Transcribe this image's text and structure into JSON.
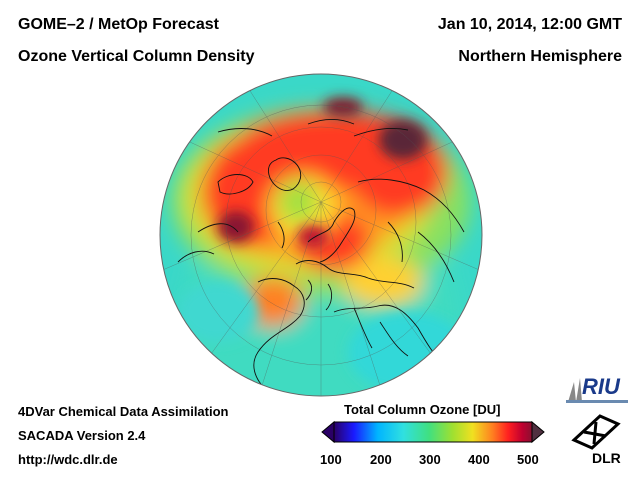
{
  "header": {
    "title": "GOME–2 / MetOp Forecast",
    "subtitle": "Ozone Vertical Column Density",
    "datetime": "Jan 10, 2014, 12:00 GMT",
    "region": "Northern Hemisphere"
  },
  "footer": {
    "method": "4DVar Chemical Data Assimilation",
    "version": "SACADA Version 2.4",
    "url": "http://wdc.dlr.de"
  },
  "colorbar": {
    "title": "Total Column Ozone [DU]",
    "ticks": [
      "100",
      "200",
      "300",
      "400",
      "500"
    ],
    "min": 100,
    "max": 500,
    "colors": [
      "#2a0066",
      "#1a1aff",
      "#00b4ff",
      "#30e0e0",
      "#40e080",
      "#a0e030",
      "#f0e020",
      "#ff8020",
      "#ff2020",
      "#c00030",
      "#503040"
    ]
  },
  "logos": {
    "riu": "RIU",
    "dlr": "DLR"
  }
}
